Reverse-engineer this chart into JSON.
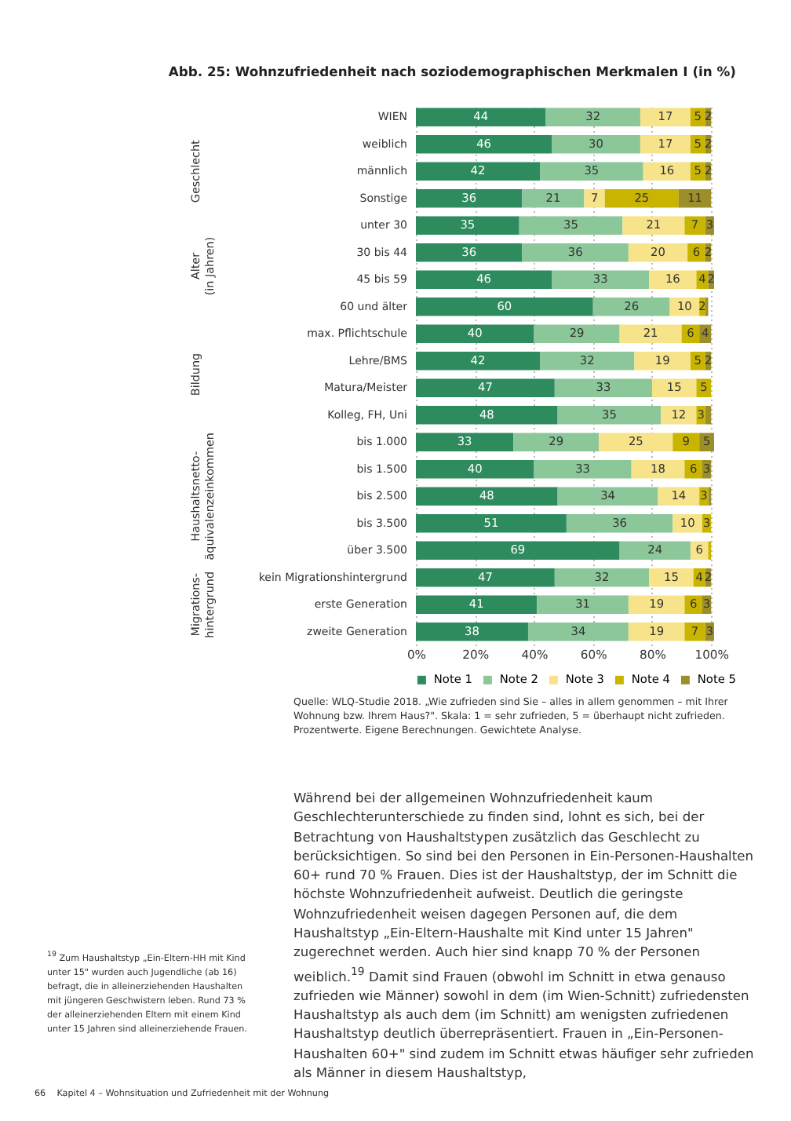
{
  "chart_data": {
    "type": "bar",
    "orientation": "horizontal",
    "stacked": true,
    "title": "Abb. 25: Wohnzufriedenheit nach soziodemographischen Merkmalen I (in %)",
    "categories": [
      "WIEN",
      "weiblich",
      "männlich",
      "Sonstige",
      "unter 30",
      "30 bis 44",
      "45 bis 59",
      "60 und älter",
      "max. Pflichtschule",
      "Lehre/BMS",
      "Matura/Meister",
      "Kolleg, FH, Uni",
      "bis 1.000",
      "bis 1.500",
      "bis 2.500",
      "bis 3.500",
      "über 3.500",
      "kein Migrationshintergrund",
      "erste Generation",
      "zweite Generation"
    ],
    "series": [
      {
        "name": "Note 1",
        "color": "#2e8b5e",
        "values": [
          44,
          46,
          42,
          36,
          35,
          36,
          46,
          60,
          40,
          42,
          47,
          48,
          33,
          40,
          48,
          51,
          69,
          47,
          41,
          38
        ],
        "value_labels": [
          "44",
          "46",
          "42",
          "36",
          "35",
          "36",
          "46",
          "60",
          "40",
          "42",
          "47",
          "48",
          "33",
          "40",
          "48",
          "51",
          "69",
          "47",
          "41",
          "38"
        ]
      },
      {
        "name": "Note 2",
        "color": "#8cc79a",
        "values": [
          32,
          30,
          35,
          21,
          35,
          36,
          33,
          26,
          29,
          32,
          33,
          35,
          29,
          33,
          34,
          36,
          24,
          32,
          31,
          34
        ],
        "value_labels": [
          "32",
          "30",
          "35",
          "21",
          "35",
          "36",
          "33",
          "26",
          "29",
          "32",
          "33",
          "35",
          "29",
          "33",
          "34",
          "36",
          "24",
          "32",
          "31",
          "34"
        ]
      },
      {
        "name": "Note 3",
        "color": "#f7e38a",
        "values": [
          17,
          17,
          16,
          7,
          21,
          20,
          16,
          10,
          21,
          19,
          15,
          12,
          25,
          18,
          14,
          10,
          6,
          15,
          19,
          19
        ],
        "value_labels": [
          "17",
          "17",
          "16",
          "7",
          "21",
          "20",
          "16",
          "10",
          "21",
          "19",
          "15",
          "12",
          "25",
          "18",
          "14",
          "10",
          "6",
          "15",
          "19",
          "19"
        ]
      },
      {
        "name": "Note 4",
        "color": "#c9b400",
        "values": [
          5,
          5,
          5,
          25,
          7,
          6,
          4,
          2,
          6,
          5,
          5,
          3,
          9,
          6,
          3,
          3,
          1,
          4,
          6,
          7
        ],
        "value_labels": [
          "5",
          "5",
          "5",
          "25",
          "7",
          "6",
          "4",
          "2",
          "6",
          "5",
          "5",
          "3",
          "9",
          "6",
          "3",
          "3",
          null,
          "4",
          "6",
          "7"
        ]
      },
      {
        "name": "Note 5",
        "color": "#9c8f2a",
        "values": [
          2,
          2,
          2,
          11,
          3,
          2,
          2,
          1,
          4,
          2,
          null,
          2,
          5,
          3,
          1,
          null,
          null,
          2,
          3,
          3
        ],
        "value_labels": [
          "2",
          "2",
          "2",
          "11",
          "3",
          "2",
          "2",
          null,
          "4",
          "2",
          null,
          null,
          "5",
          "3",
          null,
          null,
          null,
          "2",
          "3",
          "3"
        ]
      }
    ],
    "xlim": [
      0,
      101
    ],
    "xticks": [
      {
        "value": 0,
        "label": "0%"
      },
      {
        "value": 20,
        "label": "20%"
      },
      {
        "value": 40,
        "label": "40%"
      },
      {
        "value": 60,
        "label": "60%"
      },
      {
        "value": 80,
        "label": "80%"
      },
      {
        "value": 100,
        "label": "100%"
      }
    ],
    "grid": "x",
    "legend": "bottom",
    "annotations": [
      "Quelle: WLQ-Studie 2018. „Wie zufrieden sind Sie – alles in allem genommen – mit Ihrer Wohnung bzw. Ihrem Haus?\". Skala: 1 = sehr zufrieden, 5 = überhaupt nicht zufrieden. Prozentwerte. Eigene Berechnungen. Gewichtete Analyse.",
      "Geschlecht",
      "Alter (in Jahren)",
      "Bildung",
      "Haushaltsnetto-äquivalenzeinkommen",
      "Migrations-hintergrund",
      "Während bei der allgemeinen Wohnzufriedenheit kaum Geschlechterunterschiede zu finden sind, lohnt es sich, bei der Betrachtung von Haushaltstypen zusätzlich das Geschlecht zu berücksichtigen. So sind bei den Personen in Ein-Personen-Haushalten 60+ rund 70 % Frauen. Dies ist der Haushaltstyp, der im Schnitt die höchste Wohnzufriedenheit aufweist. Deutlich die geringste Wohnzufriedenheit weisen dagegen Personen auf, die dem Haushaltstyp „Ein-Eltern-Haushalte mit Kind unter 15 Jahren\" zugerechnet werden. Auch hier sind knapp 70 % der Personen weiblich.$^{19}$ Damit sind Frauen (obwohl im Schnitt in etwa genauso zufrieden wie Männer) sowohl in dem (im Wien-Schnitt) zufriedensten Haushaltstyp als auch dem (im Schnitt) am wenigsten zufriedenen Haushaltstyp deutlich überrepräsentiert. Frauen in „Ein-Personen-Haushalten 60+\" sind zudem im Schnitt etwas häufiger sehr zufrieden als Männer in diesem Haushaltstyp,",
      "$^{19}$ Zum Haushaltstyp „Ein-Eltern-HH mit Kind unter 15\" wurden auch Jugendliche (ab 16) befragt, die in alleinerziehenden Haushalten mit jüngeren Geschwistern leben. Rund 73 % der alleinerziehenden Eltern mit einem Kind unter 15 Jahren sind alleinerziehende Frauen.",
      "66    Kapitel 4 – Wohnsituation und Zufriedenheit mit der Wohnung"
    ]
  }
}
